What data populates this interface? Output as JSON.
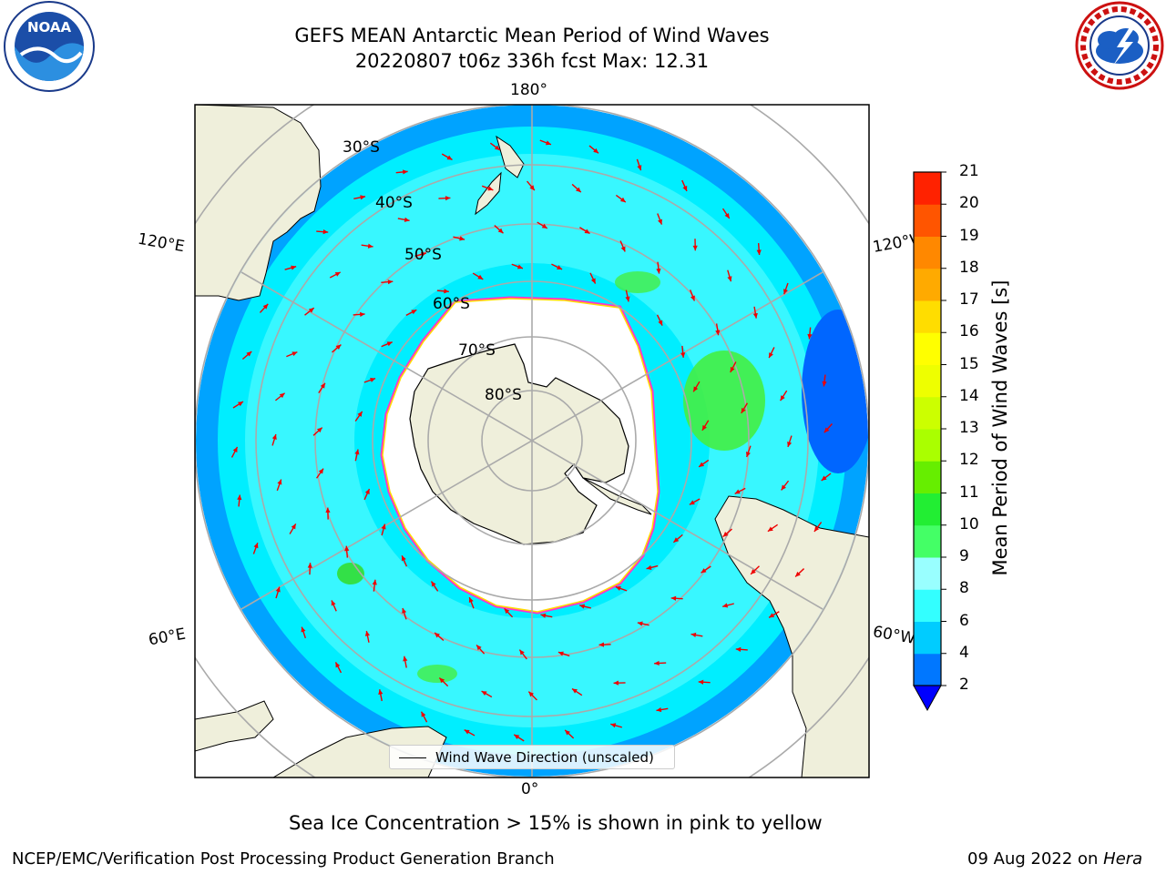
{
  "title_line1": "GEFS MEAN Antarctic Mean Period of Wind Waves",
  "title_line2": "20220807 t06z 336h fcst   Max: 12.31",
  "map": {
    "longitude_labels": [
      "180°",
      "120°E",
      "120°W",
      "60°E",
      "60°W",
      "0°"
    ],
    "latitude_labels": [
      "30°S",
      "40°S",
      "50°S",
      "60°S",
      "70°S",
      "80°S"
    ],
    "legend_label": "Wind Wave Direction (unscaled)",
    "colors": {
      "land": "#efefdb",
      "ocean_main": "#00eeff",
      "ocean_light": "#66ffff",
      "ocean_dark": "#0066ff",
      "ice": "#ffffff",
      "ice_edge": "#ff33cc",
      "arrow": "#ee0000"
    }
  },
  "colorbar": {
    "label": "Mean Period of Wind Waves [s]",
    "ticks": [
      "2",
      "4",
      "6",
      "8",
      "9",
      "10",
      "11",
      "12",
      "13",
      "14",
      "15",
      "16",
      "17",
      "18",
      "19",
      "20",
      "21"
    ],
    "colors": [
      "#0077ff",
      "#00ccff",
      "#33ffff",
      "#99ffff",
      "#44ff66",
      "#22ee33",
      "#66ee00",
      "#aaff00",
      "#ccff00",
      "#eeff00",
      "#ffff00",
      "#ffdd00",
      "#ffaa00",
      "#ff8800",
      "#ff5500",
      "#ff2200"
    ],
    "under_color": "#0000ff"
  },
  "subtitle": "Sea Ice Concentration > 15% is shown in pink to yellow",
  "footer_left": "NCEP/EMC/Verification Post Processing Product Generation Branch",
  "footer_date": "09 Aug 2022 on ",
  "footer_machine": "Hera",
  "logos": {
    "left": "noara-logo",
    "left_text": "NOAA",
    "right": "nws-logo"
  }
}
